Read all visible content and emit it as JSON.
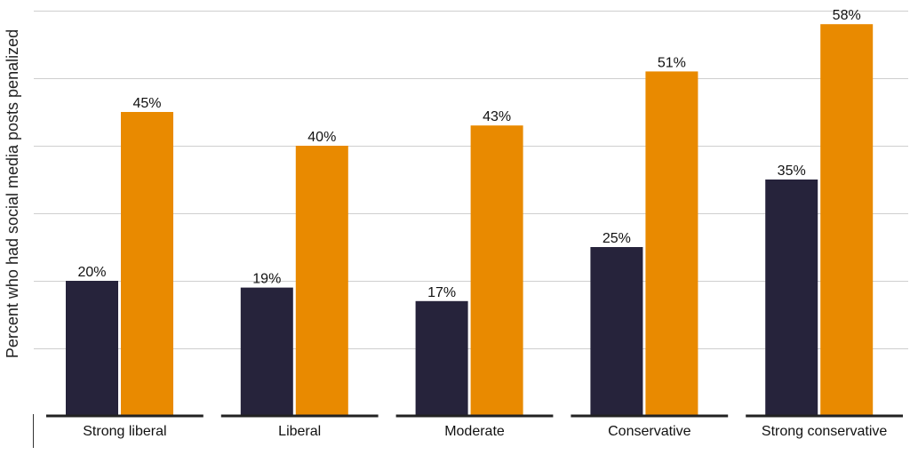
{
  "chart_data": {
    "type": "bar",
    "ylabel": "Percent who had social media posts penalized",
    "xlabel": "",
    "categories": [
      "Strong liberal",
      "Liberal",
      "Moderate",
      "Conservative",
      "Strong conservative"
    ],
    "series": [
      {
        "values": [
          20,
          19,
          17,
          25,
          35
        ],
        "labels": [
          "20%",
          "19%",
          "17%",
          "25%",
          "35%"
        ]
      },
      {
        "values": [
          45,
          40,
          43,
          51,
          58
        ],
        "labels": [
          "45%",
          "40%",
          "43%",
          "51%",
          "58%"
        ]
      }
    ],
    "ylim": [
      0,
      60
    ],
    "gridlines": [
      10,
      20,
      30,
      40,
      50,
      60
    ],
    "grid": true,
    "colors": [
      "#26233b",
      "#e98a00"
    ]
  }
}
